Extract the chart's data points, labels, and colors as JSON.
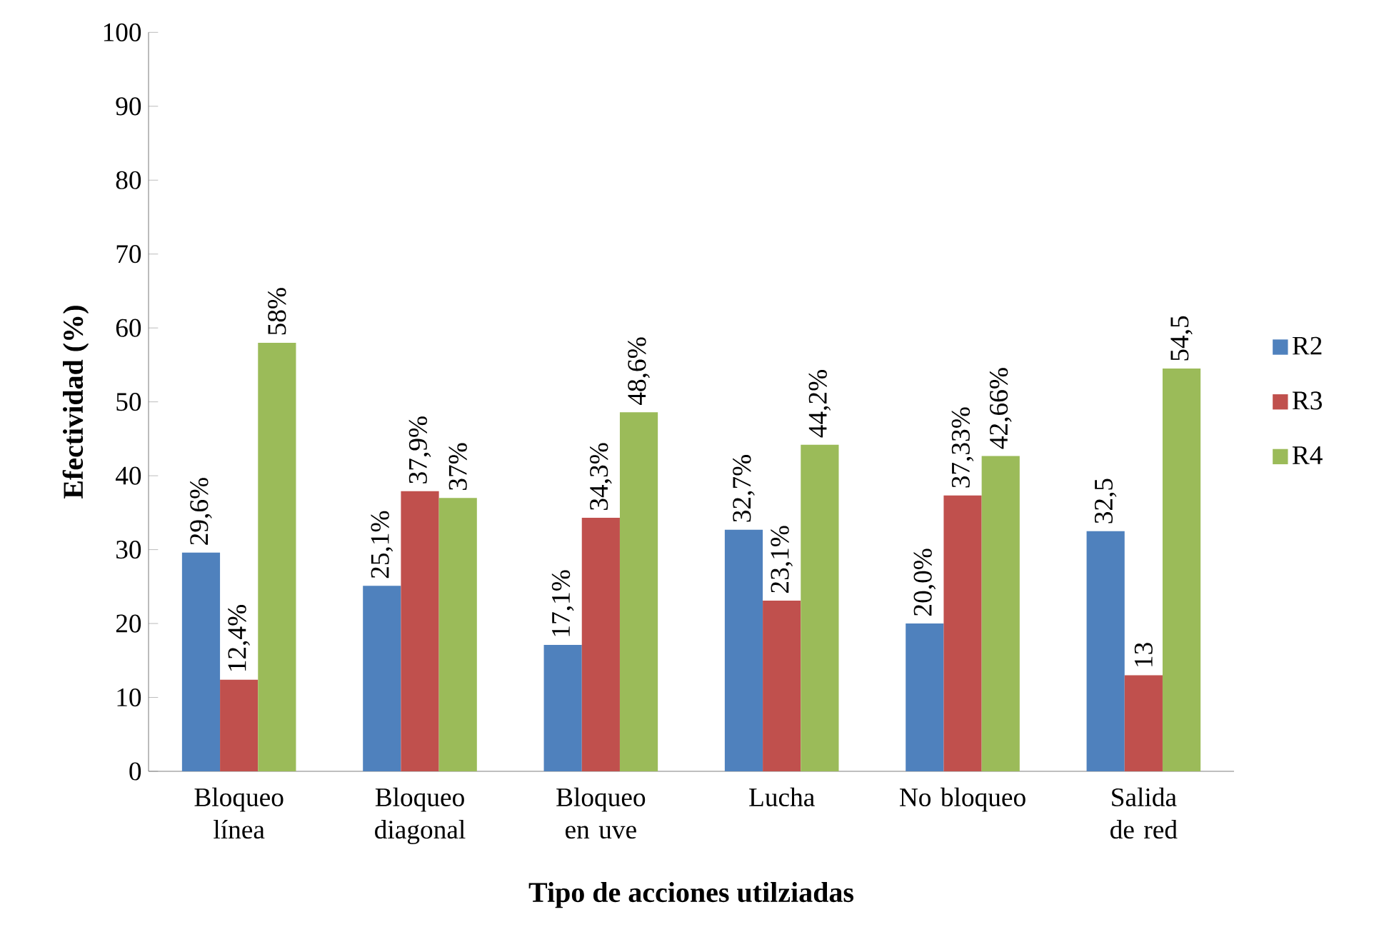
{
  "chart_data": {
    "type": "bar",
    "xlabel": "Tipo de acciones utilziadas",
    "ylabel": "Efectividad (%)",
    "categories": [
      "Bloqueo línea",
      "Bloqueo diagonal",
      "Bloqueo en uve",
      "Lucha",
      "No bloqueo",
      "Salida de red"
    ],
    "series": [
      {
        "name": "R2",
        "color": "#4f81bd",
        "values": [
          29.6,
          25.1,
          17.1,
          32.7,
          20.0,
          32.5
        ],
        "value_labels": [
          "29,6%",
          "25,1%",
          "17,1%",
          "32,7%",
          "20,0%",
          "32,5"
        ]
      },
      {
        "name": "R3",
        "color": "#c0504d",
        "values": [
          12.4,
          37.9,
          34.3,
          23.1,
          37.33,
          13
        ],
        "value_labels": [
          "12,4%",
          "37,9%",
          "34,3%",
          "23,1%",
          "37,33%",
          "13"
        ]
      },
      {
        "name": "R4",
        "color": "#9bbb59",
        "values": [
          58,
          37,
          48.6,
          44.2,
          42.66,
          54.5
        ],
        "value_labels": [
          "58%",
          "37%",
          "48,6%",
          "44,2%",
          "42,66%",
          "54,5"
        ]
      }
    ],
    "ylim": [
      0,
      100
    ],
    "yticks": [
      0,
      10,
      20,
      30,
      40,
      50,
      60,
      70,
      80,
      90,
      100
    ],
    "grid": false,
    "legend": "right"
  }
}
